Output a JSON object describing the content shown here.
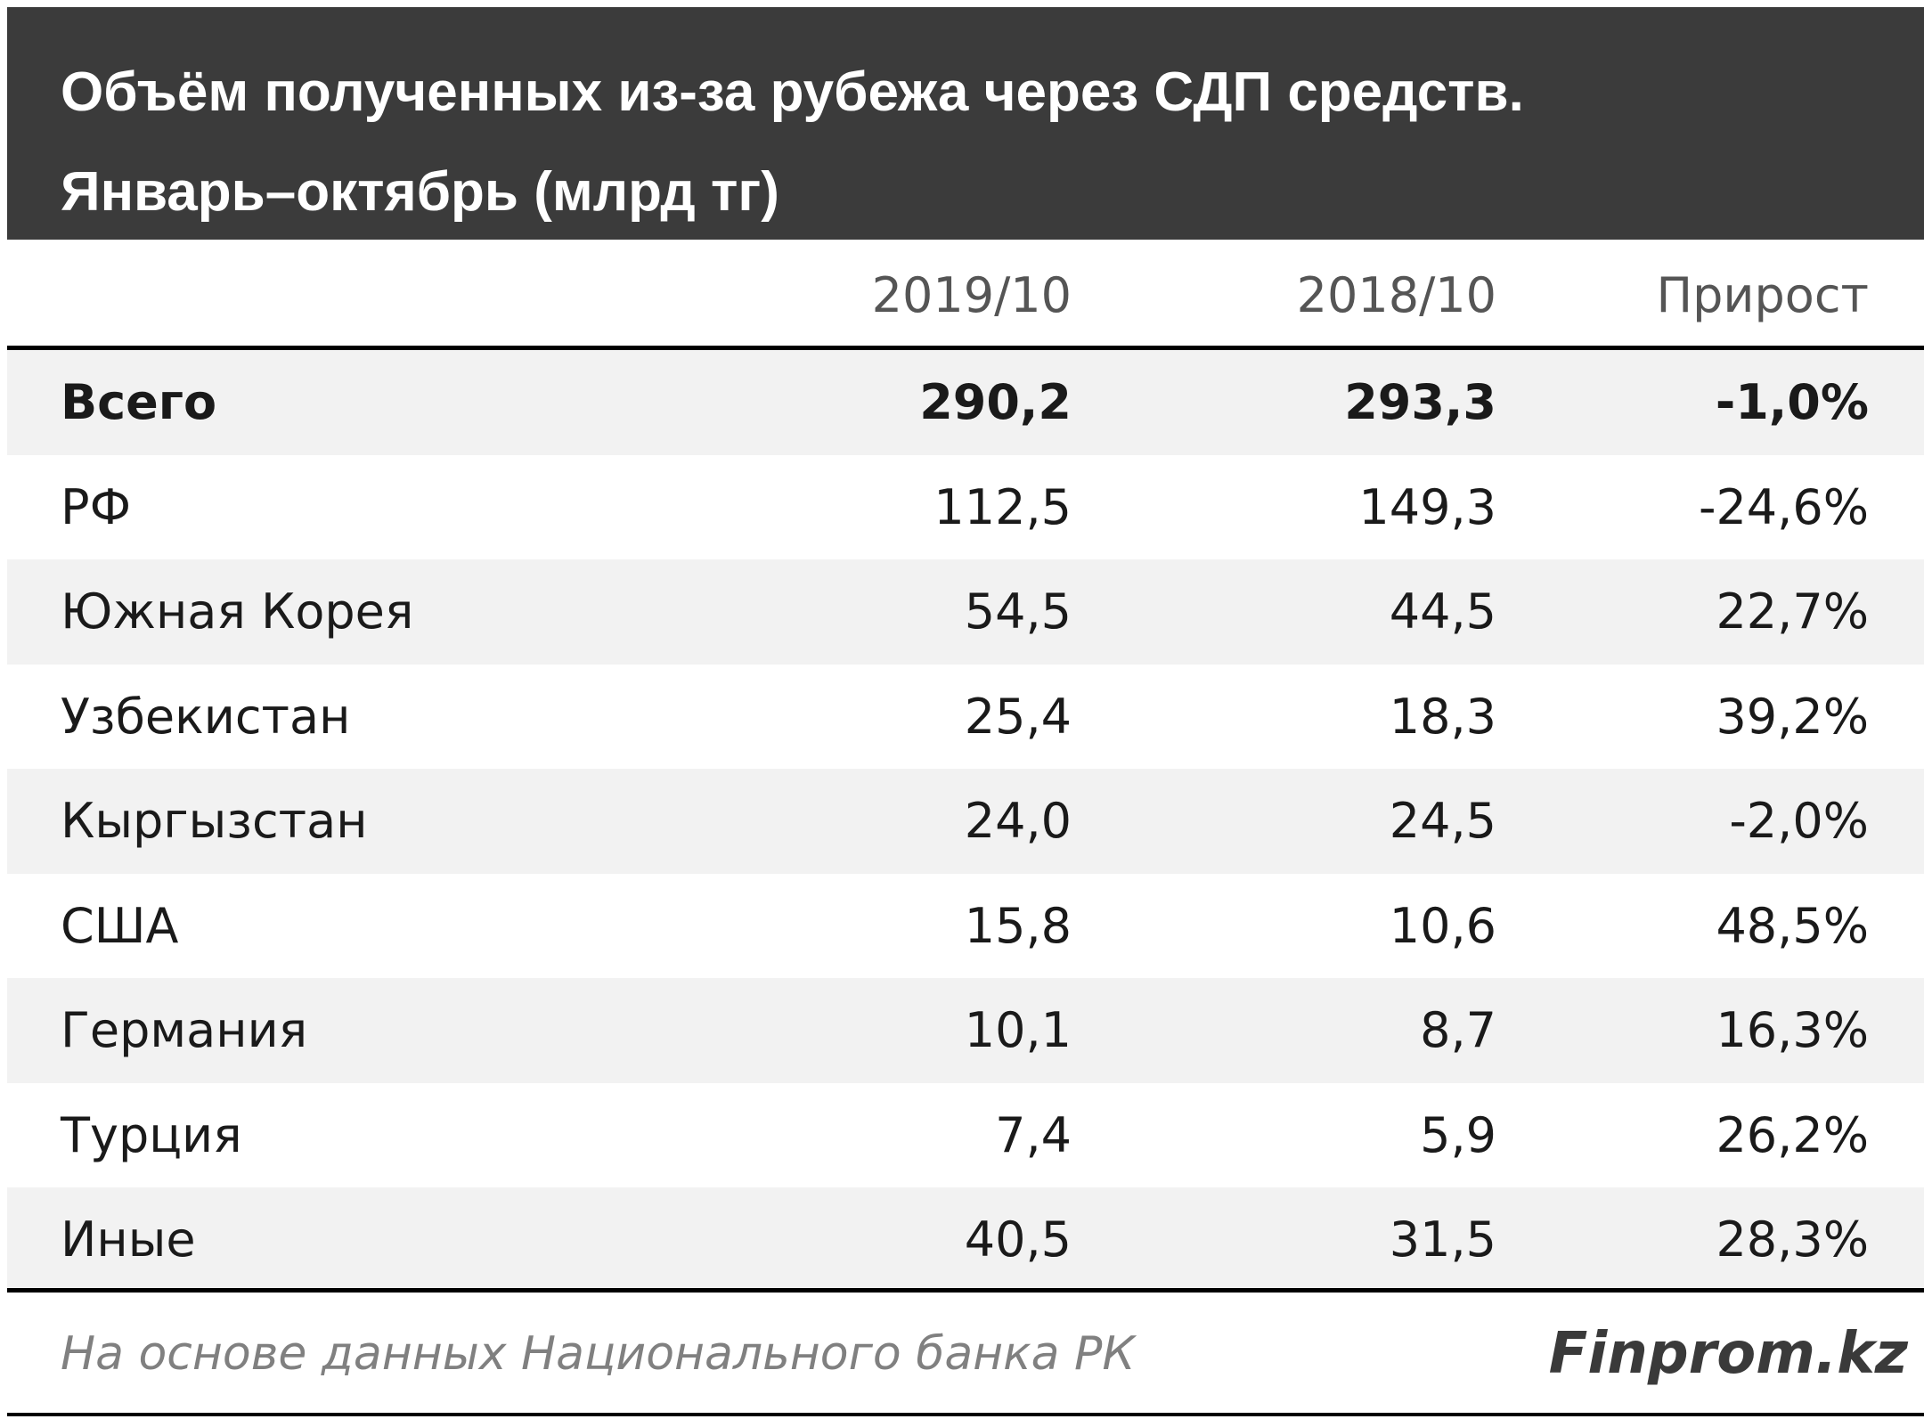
{
  "title": {
    "line1": "Объём полученных из-за рубежа через СДП средств.",
    "line2": "Январь–октябрь (млрд тг)"
  },
  "columns": {
    "label": "",
    "col1": "2019/10",
    "col2": "2018/10",
    "col3": "Прирост"
  },
  "footer": {
    "source": "На основе данных Национального банка РК",
    "brand": "Finprom.kz"
  },
  "colors": {
    "title_background": "#3b3b3b",
    "shaded_row": "#f2f2f2",
    "header_text": "#555555"
  },
  "chart_data": {
    "type": "table",
    "title": "Объём полученных из-за рубежа через СДП средств. Январь–октябрь (млрд тг)",
    "headers": [
      "",
      "2019/10",
      "2018/10",
      "Прирост"
    ],
    "rows": [
      {
        "label": "Всего",
        "v2019": "290,2",
        "v2018": "293,3",
        "growth": "-1,0%",
        "bold": true
      },
      {
        "label": "РФ",
        "v2019": "112,5",
        "v2018": "149,3",
        "growth": "-24,6%"
      },
      {
        "label": "Южная Корея",
        "v2019": "54,5",
        "v2018": "44,5",
        "growth": "22,7%"
      },
      {
        "label": "Узбекистан",
        "v2019": "25,4",
        "v2018": "18,3",
        "growth": "39,2%"
      },
      {
        "label": "Кыргызстан",
        "v2019": "24,0",
        "v2018": "24,5",
        "growth": "-2,0%"
      },
      {
        "label": "США",
        "v2019": "15,8",
        "v2018": "10,6",
        "growth": "48,5%"
      },
      {
        "label": "Германия",
        "v2019": "10,1",
        "v2018": "8,7",
        "growth": "16,3%"
      },
      {
        "label": "Турция",
        "v2019": "7,4",
        "v2018": "5,9",
        "growth": "26,2%"
      },
      {
        "label": "Иные",
        "v2019": "40,5",
        "v2018": "31,5",
        "growth": "28,3%"
      }
    ]
  }
}
